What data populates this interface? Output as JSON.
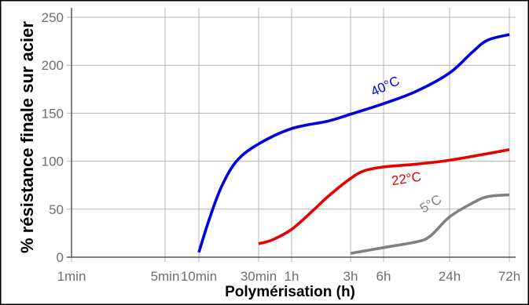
{
  "chart_data": {
    "type": "line",
    "xlabel": "Polymérisation (h)",
    "ylabel": "% résistance finale sur acier",
    "x_scale": "log",
    "x_ticks": [
      {
        "label": "1min",
        "value": 0.0167
      },
      {
        "label": "5min",
        "value": 0.0833
      },
      {
        "label": "10min",
        "value": 0.1667
      },
      {
        "label": "30min",
        "value": 0.5
      },
      {
        "label": "1h",
        "value": 1
      },
      {
        "label": "3h",
        "value": 3
      },
      {
        "label": "6h",
        "value": 6
      },
      {
        "label": "24h",
        "value": 24
      },
      {
        "label": "72h",
        "value": 72
      }
    ],
    "xlim": [
      0.0167,
      72
    ],
    "y_ticks": [
      0,
      50,
      100,
      150,
      200,
      250
    ],
    "ylim": [
      0,
      250
    ],
    "grid": true,
    "series": [
      {
        "name": "40°C",
        "color": "#0000e0",
        "points": [
          [
            0.1667,
            5
          ],
          [
            0.2,
            38
          ],
          [
            0.25,
            72
          ],
          [
            0.3333,
            100
          ],
          [
            0.5,
            118
          ],
          [
            1,
            134
          ],
          [
            2,
            142
          ],
          [
            3,
            149
          ],
          [
            6,
            160
          ],
          [
            12,
            173
          ],
          [
            24,
            192
          ],
          [
            36,
            213
          ],
          [
            48,
            226
          ],
          [
            72,
            232
          ]
        ]
      },
      {
        "name": "22°C",
        "color": "#e60000",
        "points": [
          [
            0.5,
            14
          ],
          [
            0.6667,
            18
          ],
          [
            1,
            29
          ],
          [
            1.5,
            49
          ],
          [
            2,
            64
          ],
          [
            3,
            82
          ],
          [
            4,
            90
          ],
          [
            6,
            94
          ],
          [
            12,
            97
          ],
          [
            24,
            101
          ],
          [
            72,
            112
          ]
        ]
      },
      {
        "name": "5°C",
        "color": "#808080",
        "points": [
          [
            3,
            4
          ],
          [
            6,
            10
          ],
          [
            12,
            16
          ],
          [
            16,
            22
          ],
          [
            24,
            42
          ],
          [
            36,
            56
          ],
          [
            48,
            63
          ],
          [
            72,
            65
          ]
        ]
      }
    ]
  }
}
